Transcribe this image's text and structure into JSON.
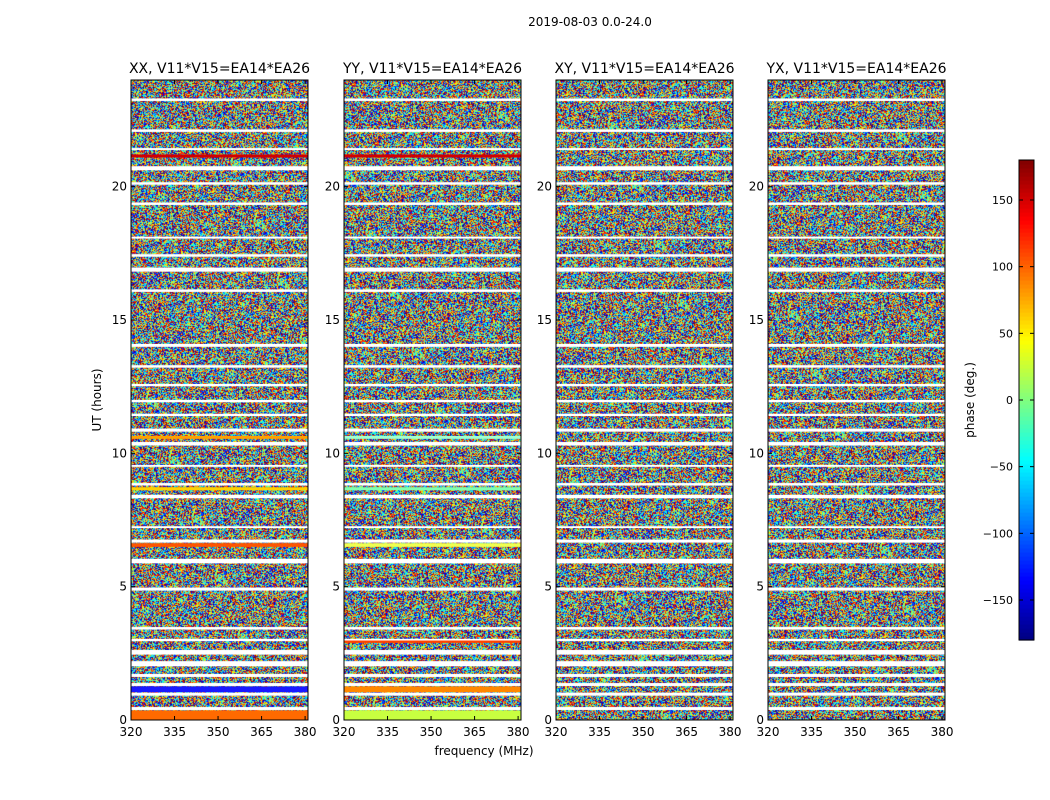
{
  "chart_data": {
    "type": "heatmap",
    "suptitle": "2019-08-03 0.0-24.0",
    "xlabel": "frequency (MHz)",
    "ylabel": "UT (hours)",
    "xlim": [
      320,
      381
    ],
    "ylim": [
      0,
      24
    ],
    "x_ticks": [
      320,
      335,
      350,
      365,
      380
    ],
    "y_ticks": [
      0,
      5,
      10,
      15,
      20
    ],
    "value_description": "per-channel phase, visually random noise (~ -180 to 180 deg) with flagged (blank) time rows",
    "panels": [
      {
        "title": "XX, V11*V15=EA14*EA26",
        "flagged_ut_rows": [
          [
            0.38,
            0.48
          ],
          [
            0.92,
            1.02
          ],
          [
            1.28,
            1.38
          ],
          [
            1.62,
            1.72
          ],
          [
            2.02,
            2.2
          ],
          [
            2.46,
            2.62
          ],
          [
            2.96,
            3.04
          ],
          [
            3.4,
            3.48
          ],
          [
            4.86,
            4.96
          ],
          [
            5.88,
            6.04
          ],
          [
            6.66,
            6.76
          ],
          [
            7.2,
            7.26
          ],
          [
            8.32,
            8.44
          ],
          [
            8.8,
            8.88
          ],
          [
            9.5,
            9.56
          ],
          [
            10.3,
            10.42
          ],
          [
            10.82,
            10.92
          ],
          [
            11.4,
            11.48
          ],
          [
            11.92,
            12.0
          ],
          [
            12.52,
            12.6
          ],
          [
            13.22,
            13.3
          ],
          [
            14.0,
            14.1
          ],
          [
            16.06,
            16.14
          ],
          [
            16.82,
            16.96
          ],
          [
            17.38,
            17.46
          ],
          [
            18.06,
            18.12
          ],
          [
            19.32,
            19.4
          ],
          [
            20.08,
            20.16
          ],
          [
            20.62,
            20.76
          ],
          [
            21.38,
            21.44
          ],
          [
            22.06,
            22.14
          ],
          [
            23.22,
            23.3
          ]
        ],
        "colored_ut_rows": [
          [
            0.0,
            0.35,
            "#ff6a00"
          ],
          [
            1.05,
            1.25,
            "#1a1aff"
          ],
          [
            6.5,
            6.62,
            "#ff5500"
          ],
          [
            8.62,
            8.72,
            "#ffd000"
          ],
          [
            10.55,
            10.65,
            "#ffa000"
          ],
          [
            21.1,
            21.2,
            "#d10000"
          ]
        ]
      },
      {
        "title": "YY, V11*V15=EA14*EA26",
        "flagged_ut_rows": [
          [
            0.38,
            0.48
          ],
          [
            0.92,
            1.02
          ],
          [
            1.28,
            1.38
          ],
          [
            1.62,
            1.72
          ],
          [
            2.02,
            2.2
          ],
          [
            2.46,
            2.62
          ],
          [
            2.96,
            3.04
          ],
          [
            3.4,
            3.48
          ],
          [
            4.86,
            4.96
          ],
          [
            5.88,
            6.04
          ],
          [
            6.66,
            6.76
          ],
          [
            7.2,
            7.26
          ],
          [
            8.32,
            8.44
          ],
          [
            8.8,
            8.88
          ],
          [
            9.5,
            9.56
          ],
          [
            10.3,
            10.42
          ],
          [
            10.82,
            10.92
          ],
          [
            11.4,
            11.48
          ],
          [
            11.92,
            12.0
          ],
          [
            12.52,
            12.6
          ],
          [
            13.22,
            13.3
          ],
          [
            14.0,
            14.1
          ],
          [
            16.06,
            16.14
          ],
          [
            16.82,
            16.96
          ],
          [
            17.38,
            17.46
          ],
          [
            18.06,
            18.12
          ],
          [
            19.32,
            19.4
          ],
          [
            20.08,
            20.16
          ],
          [
            20.62,
            20.76
          ],
          [
            21.38,
            21.44
          ],
          [
            22.06,
            22.14
          ],
          [
            23.22,
            23.3
          ]
        ],
        "colored_ut_rows": [
          [
            0.0,
            0.35,
            "#c8ff40"
          ],
          [
            1.05,
            1.25,
            "#ff8800"
          ],
          [
            2.9,
            2.98,
            "#ff4400"
          ],
          [
            6.5,
            6.62,
            "#f0ff50"
          ],
          [
            8.62,
            8.72,
            "#80ffb0"
          ],
          [
            10.55,
            10.65,
            "#a0ffd0"
          ],
          [
            21.1,
            21.2,
            "#d10000"
          ]
        ]
      },
      {
        "title": "XY, V11*V15=EA14*EA26",
        "flagged_ut_rows": [
          [
            0.38,
            0.48
          ],
          [
            0.92,
            1.02
          ],
          [
            1.28,
            1.38
          ],
          [
            1.62,
            1.72
          ],
          [
            2.02,
            2.2
          ],
          [
            2.46,
            2.62
          ],
          [
            2.96,
            3.04
          ],
          [
            3.4,
            3.48
          ],
          [
            4.86,
            4.96
          ],
          [
            5.88,
            6.04
          ],
          [
            6.66,
            6.76
          ],
          [
            7.2,
            7.26
          ],
          [
            8.32,
            8.44
          ],
          [
            8.8,
            8.88
          ],
          [
            9.5,
            9.56
          ],
          [
            10.3,
            10.42
          ],
          [
            10.82,
            10.92
          ],
          [
            11.4,
            11.48
          ],
          [
            11.92,
            12.0
          ],
          [
            12.52,
            12.6
          ],
          [
            13.22,
            13.3
          ],
          [
            14.0,
            14.1
          ],
          [
            16.06,
            16.14
          ],
          [
            16.82,
            16.96
          ],
          [
            17.38,
            17.46
          ],
          [
            18.06,
            18.12
          ],
          [
            19.32,
            19.4
          ],
          [
            20.08,
            20.16
          ],
          [
            20.62,
            20.76
          ],
          [
            21.38,
            21.44
          ],
          [
            22.06,
            22.14
          ],
          [
            23.22,
            23.3
          ]
        ],
        "colored_ut_rows": []
      },
      {
        "title": "YX, V11*V15=EA14*EA26",
        "flagged_ut_rows": [
          [
            0.38,
            0.48
          ],
          [
            0.92,
            1.02
          ],
          [
            1.28,
            1.38
          ],
          [
            1.62,
            1.72
          ],
          [
            2.02,
            2.2
          ],
          [
            2.46,
            2.62
          ],
          [
            2.96,
            3.04
          ],
          [
            3.4,
            3.48
          ],
          [
            4.86,
            4.96
          ],
          [
            5.88,
            6.04
          ],
          [
            6.66,
            6.76
          ],
          [
            7.2,
            7.26
          ],
          [
            8.32,
            8.44
          ],
          [
            8.8,
            8.88
          ],
          [
            9.5,
            9.56
          ],
          [
            10.3,
            10.42
          ],
          [
            10.82,
            10.92
          ],
          [
            11.4,
            11.48
          ],
          [
            11.92,
            12.0
          ],
          [
            12.52,
            12.6
          ],
          [
            13.22,
            13.3
          ],
          [
            14.0,
            14.1
          ],
          [
            16.06,
            16.14
          ],
          [
            16.82,
            16.96
          ],
          [
            17.38,
            17.46
          ],
          [
            18.06,
            18.12
          ],
          [
            19.32,
            19.4
          ],
          [
            20.08,
            20.16
          ],
          [
            20.62,
            20.76
          ],
          [
            21.38,
            21.44
          ],
          [
            22.06,
            22.14
          ],
          [
            23.22,
            23.3
          ]
        ],
        "colored_ut_rows": []
      }
    ],
    "colorbar": {
      "label": "phase (deg.)",
      "range": [
        -180,
        180
      ],
      "ticks": [
        -150,
        -100,
        -50,
        0,
        50,
        100,
        150
      ],
      "tick_labels": [
        "−150",
        "−100",
        "−50",
        "0",
        "50",
        "100",
        "150"
      ],
      "colormap": "jet"
    }
  }
}
